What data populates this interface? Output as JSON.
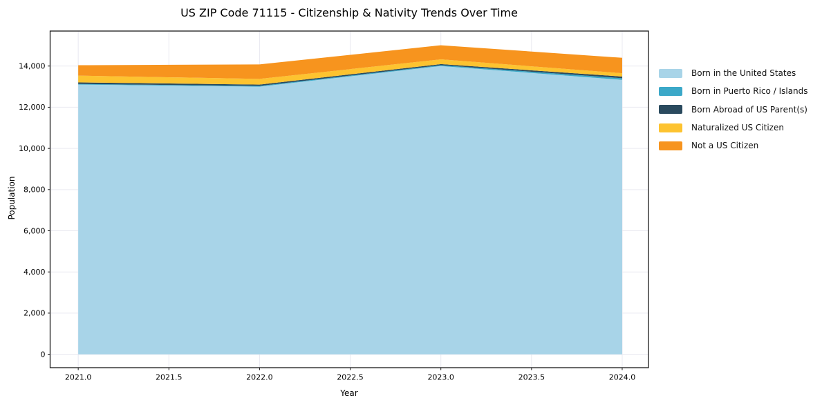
{
  "title": "US ZIP Code 71115 - Citizenship & Nativity Trends Over Time",
  "chart_data": {
    "type": "area",
    "stacked": true,
    "title": "US ZIP Code 71115 - Citizenship & Nativity Trends Over Time",
    "xlabel": "Year",
    "ylabel": "Population",
    "x": [
      2021,
      2022,
      2023,
      2024
    ],
    "series": [
      {
        "name": "Born in the United States",
        "color": "#a8d4e8",
        "values": [
          13100,
          13000,
          14000,
          13330
        ]
      },
      {
        "name": "Born in Puerto Rico / Islands",
        "color": "#3ba8c8",
        "values": [
          30,
          35,
          40,
          80
        ]
      },
      {
        "name": "Born Abroad of US Parent(s)",
        "color": "#2a4a5e",
        "values": [
          75,
          65,
          55,
          80
        ]
      },
      {
        "name": "Naturalized US Citizen",
        "color": "#fdc330",
        "values": [
          330,
          275,
          230,
          160
        ]
      },
      {
        "name": "Not a US Citizen",
        "color": "#f7941e",
        "values": [
          505,
          705,
          685,
          750
        ]
      }
    ],
    "x_ticks": [
      2021.0,
      2021.5,
      2022.0,
      2022.5,
      2023.0,
      2023.5,
      2024.0
    ],
    "x_tick_labels": [
      "2021.0",
      "2021.5",
      "2022.0",
      "2022.5",
      "2023.0",
      "2023.5",
      "2024.0"
    ],
    "y_ticks": [
      0,
      2000,
      4000,
      6000,
      8000,
      10000,
      12000,
      14000
    ],
    "y_tick_labels": [
      "0",
      "2,000",
      "4,000",
      "6,000",
      "8,000",
      "10,000",
      "12,000",
      "14,000"
    ],
    "xlim": [
      2020.845,
      2024.145
    ],
    "ylim": [
      -650,
      15700
    ],
    "grid": true,
    "grid_color": "#e9e9f0",
    "legend_position": "right outside"
  }
}
